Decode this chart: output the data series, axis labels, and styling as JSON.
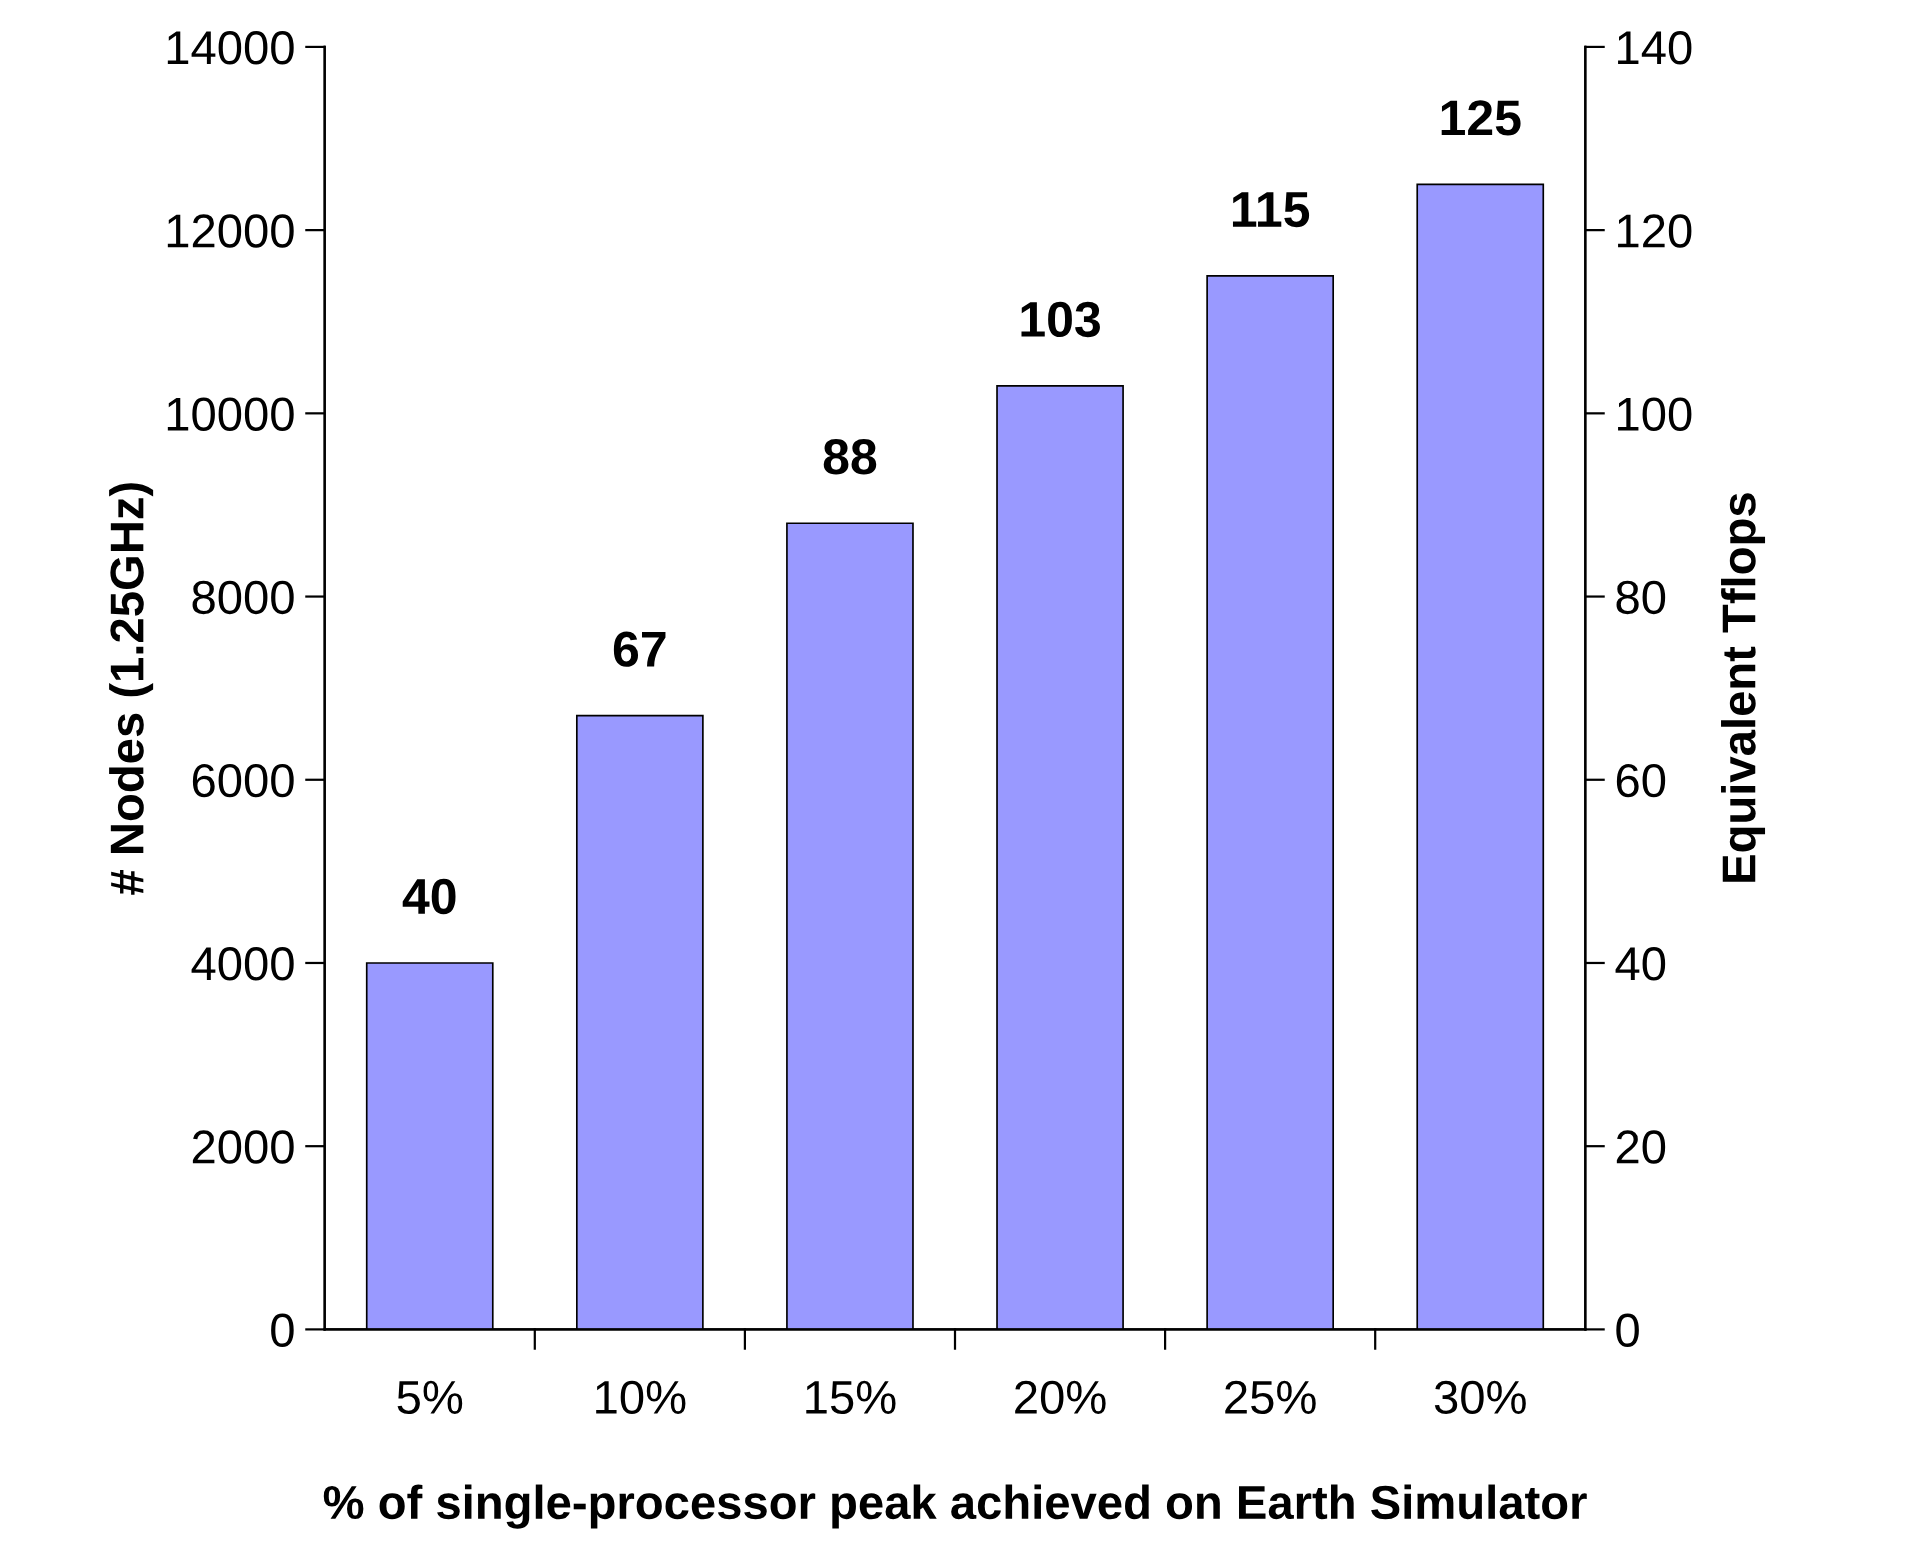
{
  "chart_data": {
    "type": "bar",
    "xlabel": "% of single-processor peak achieved on Earth Simulator",
    "ylabel": "# Nodes (1.25GHz)",
    "y2label": "Equivalent Tflops",
    "categories": [
      "5%",
      "10%",
      "15%",
      "20%",
      "25%",
      "30%"
    ],
    "series": [
      {
        "color": "#9999ff",
        "axis": "y2",
        "values": [
          40,
          67,
          88,
          103,
          115,
          125
        ]
      }
    ],
    "ylim": [
      0,
      14000
    ],
    "yticks": [
      0,
      2000,
      4000,
      6000,
      8000,
      10000,
      12000,
      14000
    ],
    "y2lim": [
      0,
      140
    ],
    "y2ticks": [
      0,
      20,
      40,
      60,
      80,
      100,
      120,
      140
    ],
    "data_labels": true,
    "grid": false,
    "legend": false
  }
}
